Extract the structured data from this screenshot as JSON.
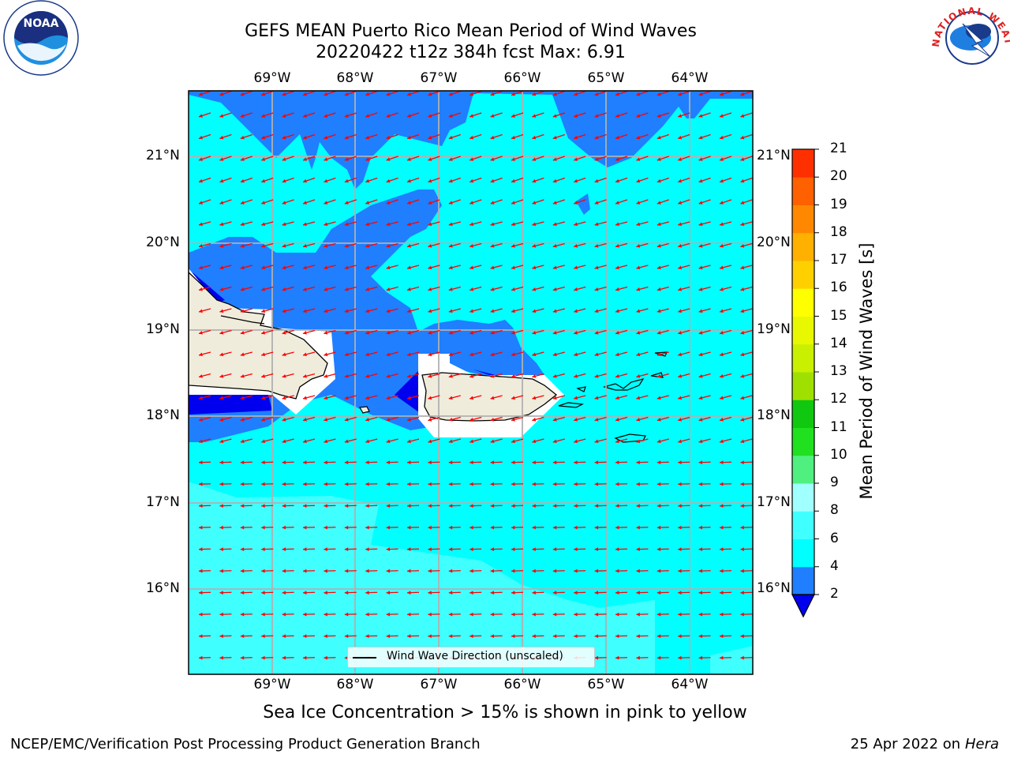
{
  "title": {
    "line1": "GEFS MEAN Puerto Rico Mean Period of Wind Waves",
    "line2": "20220422 t12z 384h fcst   Max: 6.91"
  },
  "map": {
    "lon_labels": [
      "69°W",
      "68°W",
      "67°W",
      "66°W",
      "65°W",
      "64°W"
    ],
    "lat_labels": [
      "21°N",
      "20°N",
      "19°N",
      "18°N",
      "17°N",
      "16°N"
    ],
    "legend": "Wind Wave Direction (unscaled)",
    "arrow_color": "#ff0000",
    "land_color": "#efecdc"
  },
  "colorbar": {
    "label": "Mean Period of Wind Waves [s]",
    "ticks": [
      "2",
      "4",
      "6",
      "8",
      "9",
      "10",
      "11",
      "12",
      "13",
      "14",
      "15",
      "16",
      "17",
      "18",
      "19",
      "20",
      "21"
    ],
    "colors": [
      "#1f7fff",
      "#00ffff",
      "#40ffff",
      "#a0ffff",
      "#50f080",
      "#20e020",
      "#10c810",
      "#a0e000",
      "#c8f000",
      "#e8f800",
      "#ffff00",
      "#ffd000",
      "#ffb000",
      "#ff8800",
      "#ff6000",
      "#ff3000",
      "#ff0000"
    ],
    "under_color": "#0000ee"
  },
  "subtitle": "Sea Ice Concentration > 15% is shown in pink to yellow",
  "credit": "NCEP/EMC/Verification Post Processing Product Generation Branch",
  "date": {
    "text": "25 Apr 2022 on ",
    "machine": "Hera"
  },
  "logos": {
    "noaa": "NOAA",
    "nws": "NATIONAL WEATHER SERVICE"
  }
}
